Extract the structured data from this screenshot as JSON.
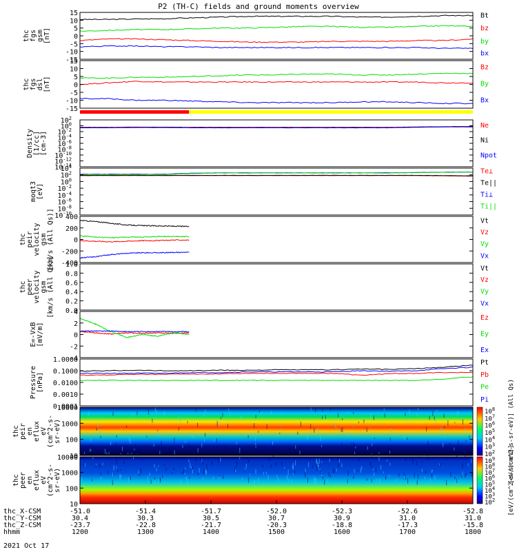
{
  "title": "P2 (TH-C) fields and ground moments overview",
  "date_label": "2021 Oct 17",
  "bottom_axis": {
    "rows": [
      {
        "label": "thc_X-CSM",
        "values": [
          "-51.0",
          "-51.4",
          "-51.7",
          "-52.0",
          "-52.3",
          "-52.6",
          "-52.8"
        ]
      },
      {
        "label": "thc_Y-CSM",
        "values": [
          "30.4",
          "30.3",
          "30.5",
          "30.7",
          "30.9",
          "31.0",
          "31.0"
        ]
      },
      {
        "label": "thc_Z-CSM",
        "values": [
          "-23.7",
          "-22.8",
          "-21.7",
          "-20.3",
          "-18.8",
          "-17.3",
          "-15.8"
        ]
      },
      {
        "label": "hhmm",
        "values": [
          "1200",
          "1300",
          "1400",
          "1500",
          "1600",
          "1700",
          "1800"
        ]
      }
    ]
  },
  "colors": {
    "black": "#000000",
    "red": "#ff0000",
    "green": "#00dd00",
    "blue": "#0000ff",
    "yellow": "#ffff00"
  },
  "chart_data": [
    {
      "type": "line",
      "panel": "fgs_gsm",
      "ylabel_lines": [
        "thc",
        "fgs",
        "gsm",
        "[nT]"
      ],
      "yticks": [
        "15",
        "10",
        "5",
        "0",
        "-5",
        "-10",
        "-15"
      ],
      "ylim": [
        -15,
        15
      ],
      "x_range_hhmm": [
        "1200",
        "1800"
      ],
      "series": [
        {
          "name": "Bt",
          "color": "black",
          "values": [
            10.5,
            10.5,
            10.8,
            11,
            11.5,
            12,
            12.5,
            12.5,
            12.5,
            12.5,
            12,
            12,
            12.5,
            13,
            13
          ]
        },
        {
          "name": "bz",
          "color": "red",
          "values": [
            -3,
            -2,
            -2,
            -2.5,
            -3,
            -3.5,
            -4,
            -4,
            -4,
            -3.5,
            -3.5,
            -3.5,
            -3,
            -3,
            -2
          ]
        },
        {
          "name": "by",
          "color": "green",
          "values": [
            3,
            3.5,
            4,
            4,
            4.5,
            5,
            5,
            5.5,
            6,
            6,
            5.5,
            5.5,
            6,
            6.5,
            6
          ]
        },
        {
          "name": "bx",
          "color": "blue",
          "values": [
            -7,
            -6.5,
            -6.5,
            -7,
            -7,
            -7.5,
            -7.5,
            -7.5,
            -7.5,
            -7.5,
            -7.5,
            -7.5,
            -7.5,
            -8,
            -8
          ]
        }
      ]
    },
    {
      "type": "line",
      "panel": "fgs_dsl",
      "ylabel_lines": [
        "thc",
        "fgs",
        "dsl",
        "[nT]"
      ],
      "yticks": [
        "15",
        "10",
        "5",
        "0",
        "-5",
        "-10",
        "-15"
      ],
      "ylim": [
        -15,
        15
      ],
      "x_range_hhmm": [
        "1200",
        "1800"
      ],
      "series": [
        {
          "name": "Bz",
          "color": "red",
          "values": [
            0,
            1,
            2,
            1.5,
            1.5,
            1.5,
            1.5,
            1.5,
            1.5,
            1.5,
            1.5,
            1.5,
            1.5,
            1,
            1
          ]
        },
        {
          "name": "By",
          "color": "green",
          "values": [
            4,
            4,
            4.5,
            4.5,
            5,
            5.5,
            6,
            6,
            6.5,
            6.5,
            6,
            6,
            6.5,
            7,
            7
          ]
        },
        {
          "name": "Bx",
          "color": "blue",
          "values": [
            -9,
            -9,
            -10,
            -10,
            -10.5,
            -11,
            -11.5,
            -11.5,
            -11.5,
            -11.5,
            -11,
            -11,
            -11.5,
            -12,
            -12
          ]
        }
      ]
    },
    {
      "type": "bar",
      "panel": "mode_bar",
      "segments": [
        {
          "from_hhmm": "1200",
          "to_hhmm": "1340",
          "color": "red"
        },
        {
          "from_hhmm": "1340",
          "to_hhmm": "1800",
          "color": "yellow"
        }
      ]
    },
    {
      "type": "line",
      "panel": "density",
      "ylabel_lines": [
        "Density",
        "[1/cc]",
        "[cm-3]"
      ],
      "yticks": [
        "10^2",
        "10^0",
        "10^-2",
        "10^-4",
        "10^-6",
        "10^-8",
        "10^-10",
        "10^-12",
        "10^-14"
      ],
      "scale": "log",
      "ylim": [
        1e-14,
        100
      ],
      "series": [
        {
          "name": "Ne",
          "color": "red",
          "values": [
            0.3,
            0.3,
            0.35,
            0.35,
            0.3,
            0.3,
            0.3,
            0.3,
            0.3,
            0.3,
            0.3,
            0.3,
            0.4,
            0.5,
            0.6
          ]
        },
        {
          "name": "Ni",
          "color": "black",
          "values": [
            0.25,
            0.25,
            0.3,
            0.3,
            0.25,
            0.25,
            0.25,
            0.25,
            0.25,
            0.25,
            0.25,
            0.25,
            0.35,
            0.45,
            0.5
          ]
        },
        {
          "name": "Npot",
          "color": "blue",
          "values": [
            0.2,
            0.2,
            0.25,
            0.25,
            0.2,
            0.2,
            0.2,
            0.2,
            0.2,
            0.2,
            0.2,
            0.2,
            0.3,
            0.4,
            0.4
          ]
        }
      ]
    },
    {
      "type": "line",
      "panel": "temperature",
      "ylabel_lines": [
        "moqt3",
        "[eV]"
      ],
      "yticks": [
        "10^4",
        "10^2",
        "10^0",
        "10^-2",
        "10^-4",
        "10^-6",
        "10^-8",
        "10^-10"
      ],
      "scale": "log",
      "ylim": [
        1e-10,
        10000
      ],
      "series": [
        {
          "name": "Te⊥",
          "color": "red",
          "values": [
            60,
            60,
            60,
            60,
            60,
            60,
            60,
            60,
            60,
            60,
            60,
            60,
            60,
            50,
            40
          ]
        },
        {
          "name": "Te||",
          "color": "black",
          "values": [
            70,
            70,
            70,
            70,
            70,
            70,
            70,
            70,
            70,
            70,
            70,
            70,
            70,
            60,
            50
          ]
        },
        {
          "name": "Ti⊥",
          "color": "blue",
          "values": [
            150,
            150,
            150,
            150,
            300,
            400,
            400,
            400,
            400,
            400,
            400,
            400,
            500,
            600,
            700
          ]
        },
        {
          "name": "Ti||",
          "color": "green",
          "values": [
            120,
            120,
            120,
            120,
            250,
            350,
            350,
            350,
            350,
            350,
            350,
            350,
            450,
            550,
            650
          ]
        }
      ]
    },
    {
      "type": "line",
      "panel": "peir_velocity",
      "ylabel_lines": [
        "thc",
        "peir",
        "velocity",
        "gsm",
        "[km/s (All Qs)]"
      ],
      "yticks": [
        "400",
        "200",
        "0",
        "-200",
        "-400"
      ],
      "ylim": [
        -400,
        400
      ],
      "x_range_hhmm": [
        "1200",
        "1340"
      ],
      "series": [
        {
          "name": "Vt",
          "color": "black",
          "values": [
            330,
            310,
            280,
            250,
            240,
            235,
            230,
            225
          ]
        },
        {
          "name": "Vz",
          "color": "red",
          "values": [
            -20,
            -30,
            -40,
            -30,
            -20,
            -20,
            -10,
            -10
          ]
        },
        {
          "name": "Vy",
          "color": "green",
          "values": [
            60,
            40,
            30,
            40,
            40,
            50,
            50,
            50
          ]
        },
        {
          "name": "Vx",
          "color": "blue",
          "values": [
            -320,
            -300,
            -260,
            -240,
            -230,
            -230,
            -225,
            -220
          ]
        }
      ]
    },
    {
      "type": "line",
      "panel": "peer_velocity",
      "ylabel_lines": [
        "thc",
        "peer",
        "velocity",
        "gsm",
        "[km/s (All Qs)]"
      ],
      "yticks": [
        "1.0",
        "0.8",
        "0.6",
        "0.4",
        "0.2",
        "0.0"
      ],
      "ylim": [
        0,
        1
      ],
      "series": [
        {
          "name": "Vt",
          "color": "black",
          "values": []
        },
        {
          "name": "Vz",
          "color": "red",
          "values": []
        },
        {
          "name": "Vy",
          "color": "green",
          "values": []
        },
        {
          "name": "Vx",
          "color": "blue",
          "values": []
        }
      ]
    },
    {
      "type": "line",
      "panel": "efield",
      "ylabel_lines": [
        "E=-VxB",
        "[mV/m]"
      ],
      "yticks": [
        "4",
        "2",
        "0",
        "-2",
        "-4"
      ],
      "ylim": [
        -4,
        4
      ],
      "x_range_hhmm": [
        "1200",
        "1340"
      ],
      "series": [
        {
          "name": "Ez",
          "color": "red",
          "values": [
            0.5,
            0.3,
            0.1,
            0.3,
            0.2,
            0.3,
            0.2,
            0.3
          ]
        },
        {
          "name": "Ey",
          "color": "green",
          "values": [
            2.8,
            1.8,
            0.5,
            -0.5,
            0,
            -0.3,
            0.3,
            0
          ]
        },
        {
          "name": "Ex",
          "color": "blue",
          "values": [
            0.6,
            0.6,
            0.6,
            0.5,
            0.5,
            0.5,
            0.5,
            0.5
          ]
        }
      ]
    },
    {
      "type": "line",
      "panel": "pressure",
      "ylabel_lines": [
        "Pressure",
        "[nPa]"
      ],
      "yticks": [
        "1.0000",
        "0.1000",
        "0.0100",
        "0.0010",
        "0.0001"
      ],
      "scale": "log",
      "ylim": [
        0.0001,
        1
      ],
      "series": [
        {
          "name": "Pt",
          "color": "black",
          "values": [
            0.09,
            0.1,
            0.11,
            0.1,
            0.1,
            0.11,
            0.11,
            0.12,
            0.12,
            0.12,
            0.14,
            0.13,
            0.15,
            0.2,
            0.3
          ]
        },
        {
          "name": "Pb",
          "color": "red",
          "values": [
            0.04,
            0.045,
            0.05,
            0.05,
            0.05,
            0.055,
            0.06,
            0.06,
            0.06,
            0.06,
            0.04,
            0.055,
            0.06,
            0.07,
            0.07
          ]
        },
        {
          "name": "Pe",
          "color": "green",
          "values": [
            0.015,
            0.015,
            0.015,
            0.015,
            0.015,
            0.015,
            0.015,
            0.015,
            0.015,
            0.015,
            0.015,
            0.015,
            0.015,
            0.02,
            0.03
          ]
        },
        {
          "name": "Pi",
          "color": "blue",
          "values": [
            0.06,
            0.06,
            0.06,
            0.06,
            0.07,
            0.07,
            0.08,
            0.08,
            0.08,
            0.08,
            0.1,
            0.09,
            0.1,
            0.15,
            0.2
          ]
        }
      ]
    },
    {
      "type": "heatmap",
      "panel": "peir_spectrogram",
      "ylabel_lines": [
        "thc",
        "peir",
        "en",
        "eflux",
        "eV",
        "(cm^2-s-",
        "sr-eV)"
      ],
      "yticks": [
        "10000",
        "1000",
        "100",
        "10"
      ],
      "scale": "log",
      "ylim": [
        5,
        25000
      ],
      "colorbar_label": "[eV/(cm^2-s-sr-eV)] (All Qs)",
      "colorbar_ticks": [
        "10^8",
        "10^7",
        "10^6",
        "10^5",
        "10^4",
        "10^3",
        "10^2"
      ]
    },
    {
      "type": "heatmap",
      "panel": "peer_spectrogram",
      "ylabel_lines": [
        "thc",
        "peer",
        "en",
        "eflux",
        "eV",
        "(cm^2-s-",
        "sr-eV)"
      ],
      "yticks": [
        "10000",
        "1000",
        "100",
        "10"
      ],
      "scale": "log",
      "ylim": [
        5,
        25000
      ],
      "colorbar_label": "[eV/(cm^2-s-sr-eV)]",
      "colorbar_ticks": [
        "10^9",
        "10^8",
        "10^7",
        "10^6",
        "10^5",
        "10^4",
        "10^3",
        "10^2"
      ]
    }
  ]
}
